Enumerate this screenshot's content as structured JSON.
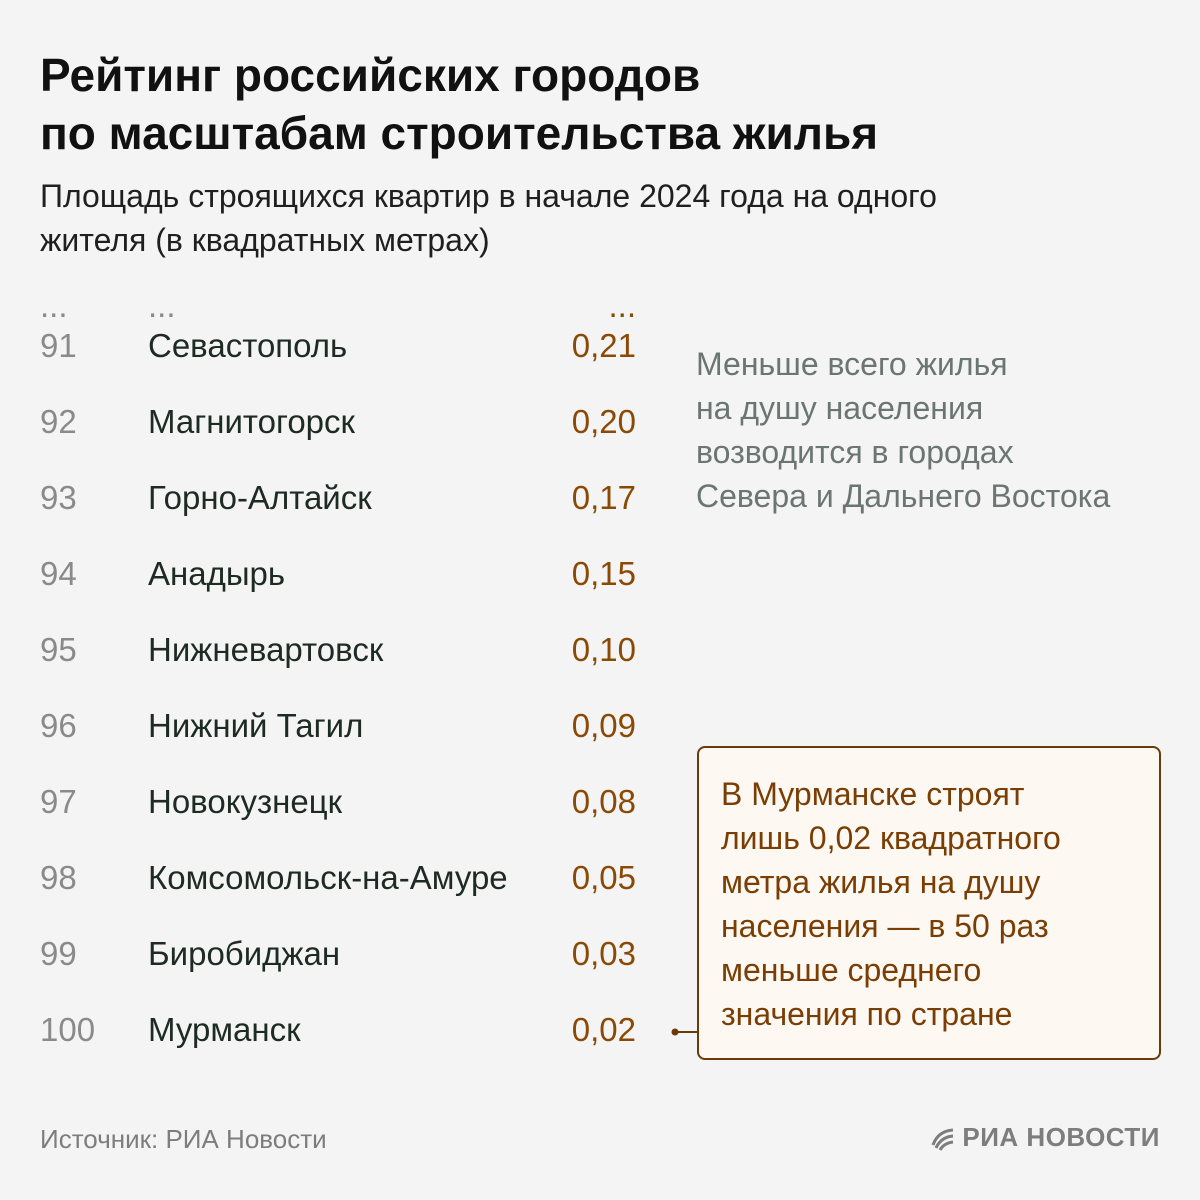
{
  "title_line1": "Рейтинг российских городов",
  "title_line2": "по масштабам строительства жилья",
  "subtitle_line1": "Площадь строящихся квартир в начале 2024 года на одного",
  "subtitle_line2": "жителя (в квадратных метрах)",
  "ellipsis": "...",
  "note_lines": [
    "Меньше всего жилья",
    "на душу населения",
    "возводится в городах",
    "Севера и Дальнего Востока"
  ],
  "callout_lines": [
    "В Мурманске строят",
    "лишь 0,02 квадратного",
    "метра жилья на душу",
    "населения — в 50 раз",
    "меньше среднего",
    "значения по стране"
  ],
  "source": "Источник: РИА Новости",
  "brand": "РИА НОВОСТИ",
  "colors": {
    "value": "#8a4a05",
    "rank": "#8a8a8a",
    "callout_border": "#6b3a08"
  },
  "chart_data": {
    "type": "table",
    "title": "Рейтинг российских городов по масштабам строительства жилья",
    "columns": [
      "rank",
      "city",
      "value"
    ],
    "rows": [
      {
        "rank": "91",
        "city": "Севастополь",
        "value": "0,21"
      },
      {
        "rank": "92",
        "city": "Магнитогорск",
        "value": "0,20"
      },
      {
        "rank": "93",
        "city": "Горно-Алтайск",
        "value": "0,17"
      },
      {
        "rank": "94",
        "city": "Анадырь",
        "value": "0,15"
      },
      {
        "rank": "95",
        "city": "Нижневартовск",
        "value": "0,10"
      },
      {
        "rank": "96",
        "city": "Нижний Тагил",
        "value": "0,09"
      },
      {
        "rank": "97",
        "city": "Новокузнецк",
        "value": "0,08"
      },
      {
        "rank": "98",
        "city": "Комсомольск-на-Амуре",
        "value": "0,05"
      },
      {
        "rank": "99",
        "city": "Биробиджан",
        "value": "0,03"
      },
      {
        "rank": "100",
        "city": "Мурманск",
        "value": "0,02"
      }
    ]
  }
}
